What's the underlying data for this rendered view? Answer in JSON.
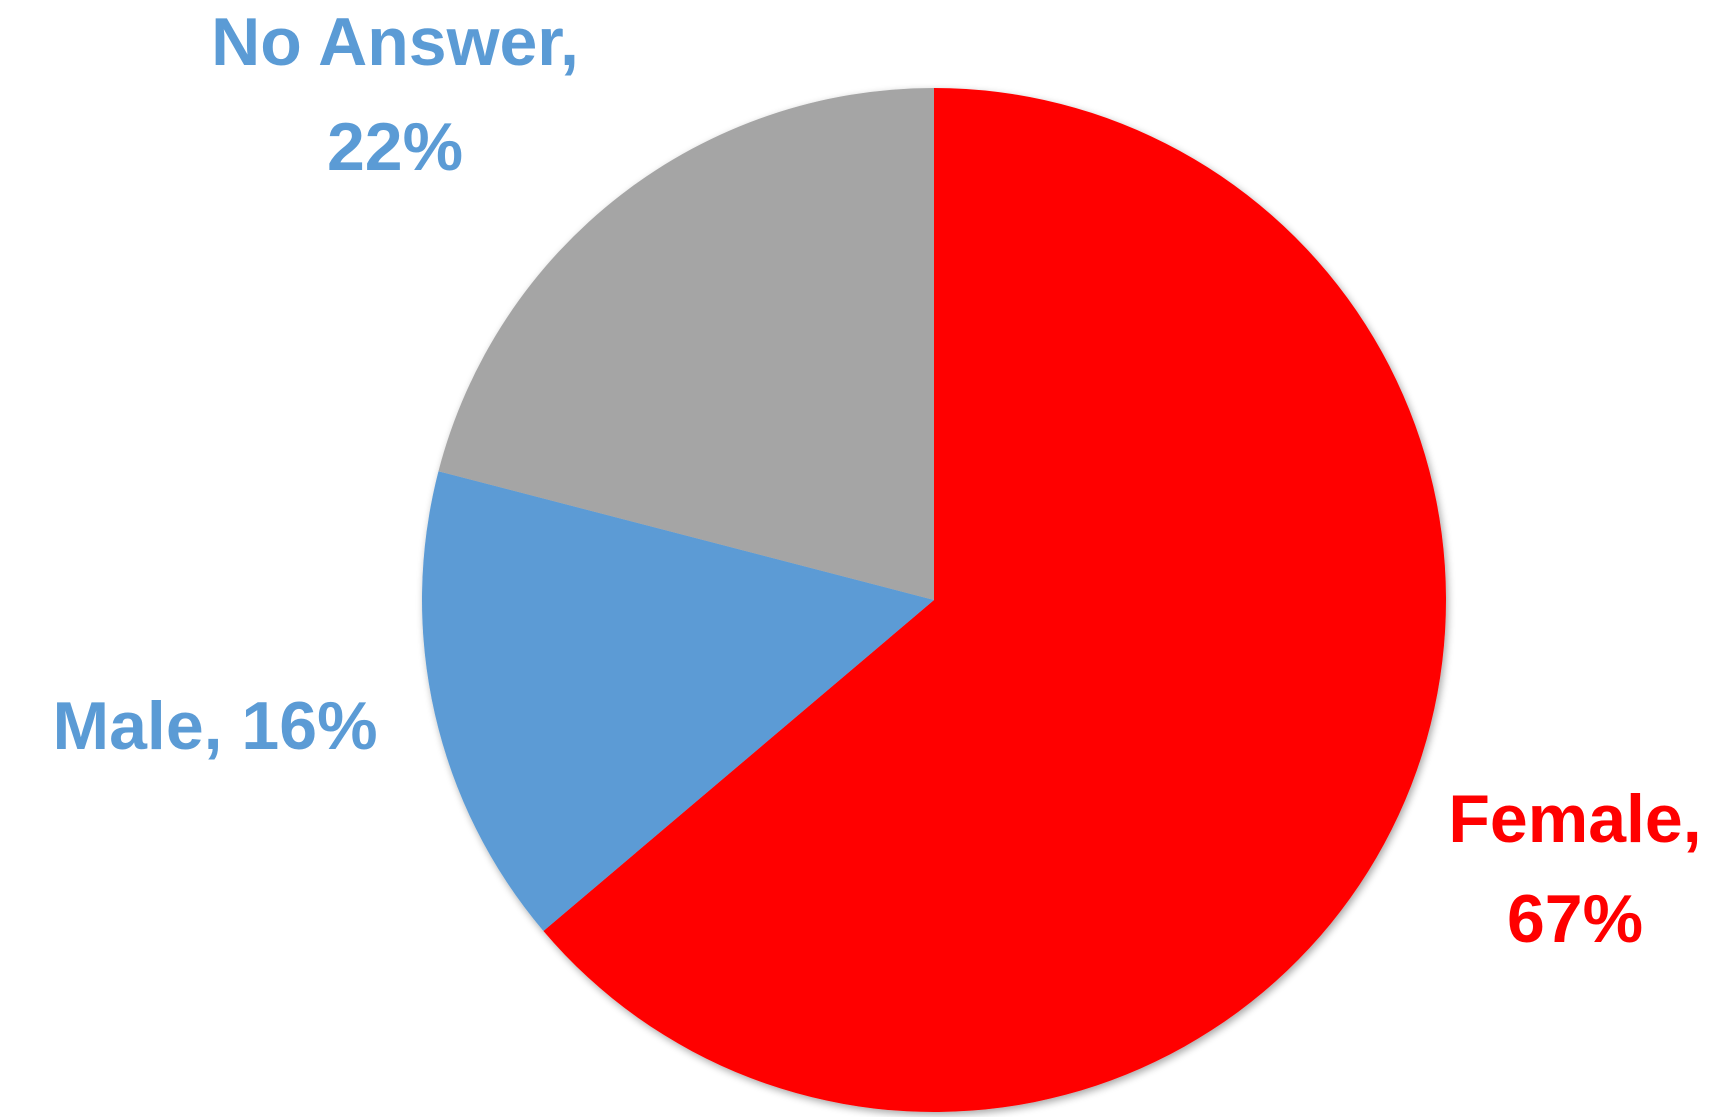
{
  "chart_data": {
    "type": "pie",
    "title": "",
    "start_angle_deg": 0,
    "direction": "clockwise",
    "legend": "none",
    "slices": [
      {
        "label": "Female",
        "value": 67,
        "color": "#FF0000",
        "label_lines": [
          "Female,",
          "67%"
        ]
      },
      {
        "label": "Male",
        "value": 16,
        "color": "#5B9BD5",
        "label_lines": [
          "Male, 16%"
        ]
      },
      {
        "label": "No Answer",
        "value": 22,
        "color": "#A5A5A5",
        "label_lines": [
          "No Answer,",
          "22%"
        ]
      }
    ],
    "label_colors": {
      "Female": "#FF0000",
      "Male": "#5B9BD5",
      "No Answer": "#5B9BD5"
    }
  }
}
